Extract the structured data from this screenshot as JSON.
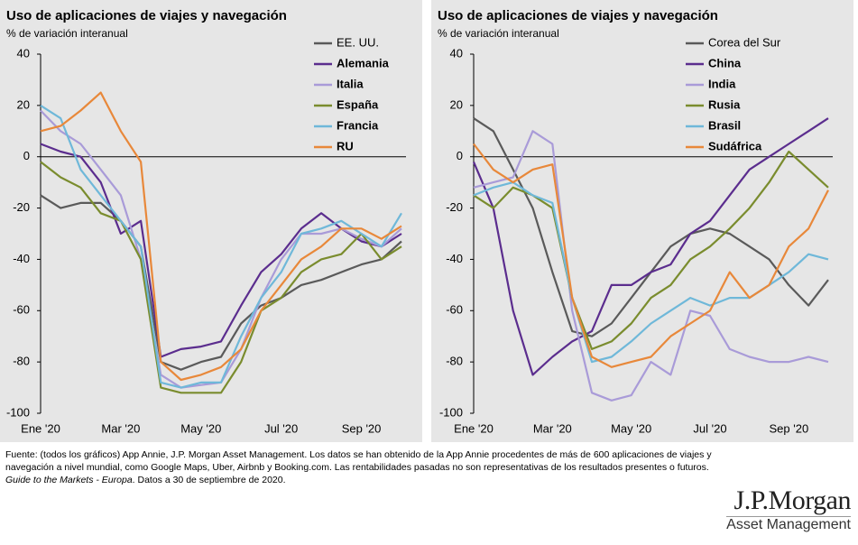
{
  "chart_data": [
    {
      "type": "line",
      "title": "Uso de aplicaciones de viajes y navegación",
      "subtitle": "% de variación interanual",
      "categories": [
        "Ene '20",
        null,
        null,
        null,
        "Mar '20",
        null,
        null,
        null,
        "May '20",
        null,
        null,
        null,
        "Jul '20",
        null,
        null,
        null,
        "Sep '20",
        null,
        null
      ],
      "ylim": [
        -100,
        40
      ],
      "yticks": [
        -100,
        -80,
        -60,
        -40,
        -20,
        0,
        20,
        40
      ],
      "series": [
        {
          "name": "EE. UU.",
          "color": "#5a5a5a",
          "values": [
            -15,
            -20,
            -18,
            -18,
            -25,
            -35,
            -80,
            -83,
            -80,
            -78,
            -65,
            -58,
            -55,
            -50,
            -48,
            -45,
            -42,
            -40,
            -33
          ]
        },
        {
          "name": "Alemania",
          "color": "#5b2d8e",
          "values": [
            5,
            2,
            0,
            -10,
            -30,
            -25,
            -78,
            -75,
            -74,
            -72,
            -58,
            -45,
            -38,
            -28,
            -22,
            -28,
            -33,
            -35,
            -30
          ]
        },
        {
          "name": "Italia",
          "color": "#a99bd8",
          "values": [
            18,
            10,
            5,
            -5,
            -15,
            -40,
            -85,
            -90,
            -89,
            -88,
            -75,
            -55,
            -40,
            -30,
            -30,
            -28,
            -32,
            -35,
            -28
          ]
        },
        {
          "name": "España",
          "color": "#7a8c2e",
          "values": [
            -2,
            -8,
            -12,
            -22,
            -25,
            -40,
            -90,
            -92,
            -92,
            -92,
            -80,
            -60,
            -55,
            -45,
            -40,
            -38,
            -30,
            -40,
            -35
          ]
        },
        {
          "name": "Francia",
          "color": "#6fb8d9",
          "values": [
            20,
            15,
            -5,
            -15,
            -25,
            -35,
            -88,
            -90,
            -88,
            -88,
            -70,
            -55,
            -45,
            -30,
            -28,
            -25,
            -30,
            -35,
            -22
          ]
        },
        {
          "name": "RU",
          "color": "#e8883a",
          "values": [
            10,
            12,
            18,
            25,
            10,
            -2,
            -80,
            -87,
            -85,
            -82,
            -75,
            -60,
            -50,
            -40,
            -35,
            -28,
            -28,
            -32,
            -27
          ]
        }
      ]
    },
    {
      "type": "line",
      "title": "Uso de aplicaciones de viajes y navegación",
      "subtitle": "% de variación interanual",
      "categories": [
        "Ene '20",
        null,
        null,
        null,
        "Mar '20",
        null,
        null,
        null,
        "May '20",
        null,
        null,
        null,
        "Jul '20",
        null,
        null,
        null,
        "Sep '20",
        null,
        null
      ],
      "ylim": [
        -100,
        40
      ],
      "yticks": [
        -100,
        -80,
        -60,
        -40,
        -20,
        0,
        20,
        40
      ],
      "series": [
        {
          "name": "Corea del Sur",
          "color": "#5a5a5a",
          "values": [
            15,
            10,
            -5,
            -20,
            -45,
            -68,
            -70,
            -65,
            -55,
            -45,
            -35,
            -30,
            -28,
            -30,
            -35,
            -40,
            -50,
            -58,
            -48
          ]
        },
        {
          "name": "China",
          "color": "#5b2d8e",
          "values": [
            -2,
            -20,
            -60,
            -85,
            -78,
            -72,
            -68,
            -50,
            -50,
            -45,
            -42,
            -30,
            -25,
            -15,
            -5,
            0,
            5,
            10,
            15
          ]
        },
        {
          "name": "India",
          "color": "#a99bd8",
          "values": [
            -12,
            -10,
            -8,
            10,
            5,
            -60,
            -92,
            -95,
            -93,
            -80,
            -85,
            -60,
            -62,
            -75,
            -78,
            -80,
            -80,
            -78,
            -80
          ]
        },
        {
          "name": "Rusia",
          "color": "#7a8c2e",
          "values": [
            -15,
            -20,
            -12,
            -15,
            -20,
            -55,
            -75,
            -72,
            -65,
            -55,
            -50,
            -40,
            -35,
            -28,
            -20,
            -10,
            2,
            -5,
            -12
          ]
        },
        {
          "name": "Brasil",
          "color": "#6fb8d9",
          "values": [
            -15,
            -12,
            -10,
            -15,
            -18,
            -55,
            -80,
            -78,
            -72,
            -65,
            -60,
            -55,
            -58,
            -55,
            -55,
            -50,
            -45,
            -38,
            -40
          ]
        },
        {
          "name": "Sudáfrica",
          "color": "#e8883a",
          "values": [
            5,
            -5,
            -10,
            -5,
            -3,
            -55,
            -78,
            -82,
            -80,
            -78,
            -70,
            -65,
            -60,
            -45,
            -55,
            -50,
            -35,
            -28,
            -13
          ]
        }
      ]
    }
  ],
  "footer": {
    "text1": "Fuente: (todos los gráficos) App Annie, J.P. Morgan Asset Management. Los datos se han obtenido de la App Annie procedentes de más de 600 aplicaciones de viajes y navegación a nivel mundial, como Google Maps, Uber, Airbnb y Booking.com. Las rentabilidades pasadas no son representativas de los resultados presentes o futuros. ",
    "italic": "Guide to the Markets - Europa",
    "text2": ". Datos a 30 de septiembre de 2020."
  },
  "logo": {
    "name": "J.P.Morgan",
    "sub": "Asset Management"
  }
}
